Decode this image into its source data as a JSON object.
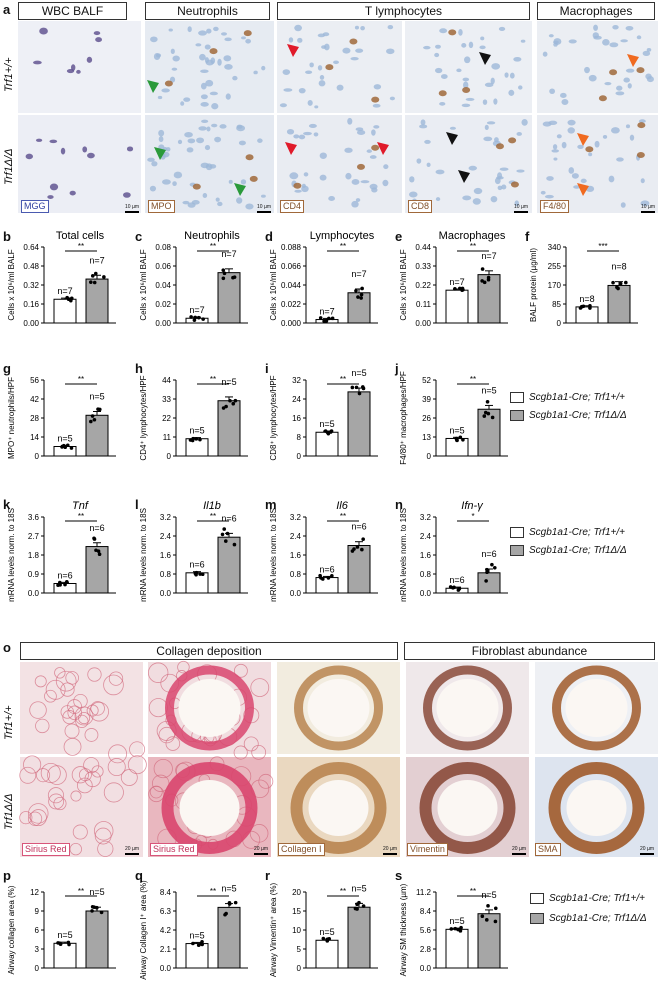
{
  "panels": {
    "a": "a",
    "b": "b",
    "c": "c",
    "d": "d",
    "e": "e",
    "f": "f",
    "g": "g",
    "h": "h",
    "i": "i",
    "j": "j",
    "k": "k",
    "l": "l",
    "m": "m",
    "n": "n",
    "o": "o",
    "p": "p",
    "q": "q",
    "r": "r",
    "s": "s"
  },
  "headers_a": [
    "WBC BALF",
    "Neutrophils",
    "T lymphocytes",
    "Macrophages"
  ],
  "headers_o": [
    "Collagen deposition",
    "Fibroblast abundance"
  ],
  "genotype_wt": "Trf1+/+",
  "genotype_ko": "Trf1Δ/Δ",
  "stains_a": [
    "MGG",
    "MPO",
    "CD4",
    "CD8",
    "F4/80"
  ],
  "stains_o": [
    "Sirius Red",
    "Sirius Red",
    "Collagen I",
    "Vimentin",
    "SMA"
  ],
  "scale_a": "10 µm",
  "scale_o": "20 µm",
  "legend": {
    "wt": "Scgb1a1-Cre; Trf1+/+",
    "ko": "Scgb1a1-Cre; Trf1Δ/Δ",
    "wt_color": "#ffffff",
    "ko_color": "#a6a6a6"
  },
  "colors": {
    "hematoxylin": "#9db8d8",
    "dab": "#a0683a",
    "sirius": "#d8557a",
    "mgg": "#5a4c8c",
    "arrow_red": "#e01a2a",
    "arrow_green": "#2a9a3a",
    "arrow_black": "#111111",
    "arrow_orange": "#f06a20"
  },
  "chart_data": [
    {
      "id": "b",
      "type": "bar",
      "title": "Total cells",
      "ylabel": "Cells x 10⁶/ml BALF",
      "ylim": [
        0,
        0.64
      ],
      "yticks": [
        "0.00",
        "0.16",
        "0.32",
        "0.48",
        "0.64"
      ],
      "values": [
        0.2,
        0.37
      ],
      "n": [
        "n=7",
        "n=7"
      ],
      "sig": "**"
    },
    {
      "id": "c",
      "type": "bar",
      "title": "Neutrophils",
      "ylabel": "Cells x 10⁶/ml BALF",
      "ylim": [
        0,
        0.08
      ],
      "yticks": [
        "0.00",
        "0.02",
        "0.04",
        "0.06",
        "0.08"
      ],
      "values": [
        0.005,
        0.053
      ],
      "n": [
        "n=7",
        "n=7"
      ],
      "sig": "**"
    },
    {
      "id": "d",
      "type": "bar",
      "title": "Lymphocytes",
      "ylabel": "Cells x 10⁶/ml BALF",
      "ylim": [
        0,
        0.088
      ],
      "yticks": [
        "0.000",
        "0.022",
        "0.044",
        "0.066",
        "0.088"
      ],
      "values": [
        0.004,
        0.035
      ],
      "n": [
        "n=7",
        "n=7"
      ],
      "sig": "**"
    },
    {
      "id": "e",
      "type": "bar",
      "title": "Macrophages",
      "ylabel": "Cells x 10⁶/ml BALF",
      "ylim": [
        0,
        0.44
      ],
      "yticks": [
        "0.00",
        "0.11",
        "0.22",
        "0.33",
        "0.44"
      ],
      "values": [
        0.19,
        0.28
      ],
      "n": [
        "n=7",
        "n=7"
      ],
      "sig": "**"
    },
    {
      "id": "f",
      "type": "bar",
      "title": "",
      "ylabel": "BALF protein (µg/ml)",
      "ylim": [
        0,
        340
      ],
      "yticks": [
        "0",
        "85",
        "170",
        "255",
        "340"
      ],
      "values": [
        72,
        168
      ],
      "n": [
        "n=8",
        "n=8"
      ],
      "sig": "***"
    },
    {
      "id": "g",
      "type": "bar",
      "title": "",
      "ylabel": "MPO⁺ neutrophils/HPF",
      "ylim": [
        0,
        56
      ],
      "yticks": [
        "0",
        "14",
        "28",
        "42",
        "56"
      ],
      "values": [
        7,
        30
      ],
      "n": [
        "n=5",
        "n=5"
      ],
      "sig": "**"
    },
    {
      "id": "h",
      "type": "bar",
      "title": "",
      "ylabel": "CD4⁺ lymphocytes/HPF",
      "ylim": [
        0,
        44
      ],
      "yticks": [
        "0",
        "11",
        "22",
        "33",
        "44"
      ],
      "values": [
        10,
        32
      ],
      "n": [
        "n=5",
        "n=5"
      ],
      "sig": "**"
    },
    {
      "id": "i",
      "type": "bar",
      "title": "",
      "ylabel": "CD8⁺ lymphocytes/HPF",
      "ylim": [
        0,
        32
      ],
      "yticks": [
        "0",
        "8",
        "16",
        "24",
        "32"
      ],
      "values": [
        10,
        27
      ],
      "n": [
        "n=5",
        "n=5"
      ],
      "sig": "**"
    },
    {
      "id": "j",
      "type": "bar",
      "title": "",
      "ylabel": "F4/80⁺ macrophages/HPF",
      "ylim": [
        0,
        52
      ],
      "yticks": [
        "0",
        "13",
        "26",
        "39",
        "52"
      ],
      "values": [
        12,
        32
      ],
      "n": [
        "n=5",
        "n=5"
      ],
      "sig": "**"
    },
    {
      "id": "k",
      "type": "bar",
      "title": "Tnf",
      "ylabel": "mRNA levels norm. to 18S",
      "ylim": [
        0,
        3.6
      ],
      "yticks": [
        "0.0",
        "0.9",
        "1.8",
        "2.7",
        "3.6"
      ],
      "values": [
        0.45,
        2.2
      ],
      "n": [
        "n=6",
        "n=6"
      ],
      "sig": "**"
    },
    {
      "id": "l",
      "type": "bar",
      "title": "Il1b",
      "ylabel": "mRNA levels norm. to 18S",
      "ylim": [
        0,
        3.2
      ],
      "yticks": [
        "0.0",
        "0.8",
        "1.6",
        "2.4",
        "3.2"
      ],
      "values": [
        0.85,
        2.35
      ],
      "n": [
        "n=6",
        "n=6"
      ],
      "sig": "**"
    },
    {
      "id": "m",
      "type": "bar",
      "title": "Il6",
      "ylabel": "mRNA levels norm. to 18S",
      "ylim": [
        0,
        3.2
      ],
      "yticks": [
        "0.0",
        "0.8",
        "1.6",
        "2.4",
        "3.2"
      ],
      "values": [
        0.65,
        2.0
      ],
      "n": [
        "n=6",
        "n=6"
      ],
      "sig": "**"
    },
    {
      "id": "n",
      "type": "bar",
      "title": "Ifn-γ",
      "ylabel": "mRNA levels norm. to 18S",
      "ylim": [
        0,
        3.2
      ],
      "yticks": [
        "0.0",
        "0.8",
        "1.6",
        "2.4",
        "3.2"
      ],
      "values": [
        0.2,
        0.85
      ],
      "n": [
        "n=6",
        "n=6"
      ],
      "sig": "*"
    },
    {
      "id": "p",
      "type": "bar",
      "title": "",
      "ylabel": "Airway collagen area (%)",
      "ylim": [
        0,
        12
      ],
      "yticks": [
        "0",
        "3",
        "6",
        "9",
        "12"
      ],
      "values": [
        3.9,
        9.0
      ],
      "n": [
        "n=5",
        "n=5"
      ],
      "sig": "**"
    },
    {
      "id": "q",
      "type": "bar",
      "title": "",
      "ylabel": "Airway Collagen I⁺ area (%)",
      "ylim": [
        0,
        8.4
      ],
      "yticks": [
        "0.0",
        "2.1",
        "4.2",
        "6.3",
        "8.4"
      ],
      "values": [
        2.7,
        6.7
      ],
      "n": [
        "n=5",
        "n=5"
      ],
      "sig": "**"
    },
    {
      "id": "r",
      "type": "bar",
      "title": "",
      "ylabel": "Airway Vimentin⁺ area (%)",
      "ylim": [
        0,
        20
      ],
      "yticks": [
        "0",
        "5",
        "10",
        "15",
        "20"
      ],
      "values": [
        7.3,
        16.0
      ],
      "n": [
        "n=5",
        "n=5"
      ],
      "sig": "**"
    },
    {
      "id": "s",
      "type": "bar",
      "title": "",
      "ylabel": "Airway SM thickness (µm)",
      "ylim": [
        0,
        11.2
      ],
      "yticks": [
        "0.0",
        "2.8",
        "5.6",
        "8.4",
        "11.2"
      ],
      "values": [
        5.7,
        8.0
      ],
      "n": [
        "n=5",
        "n=5"
      ],
      "sig": "**"
    }
  ]
}
